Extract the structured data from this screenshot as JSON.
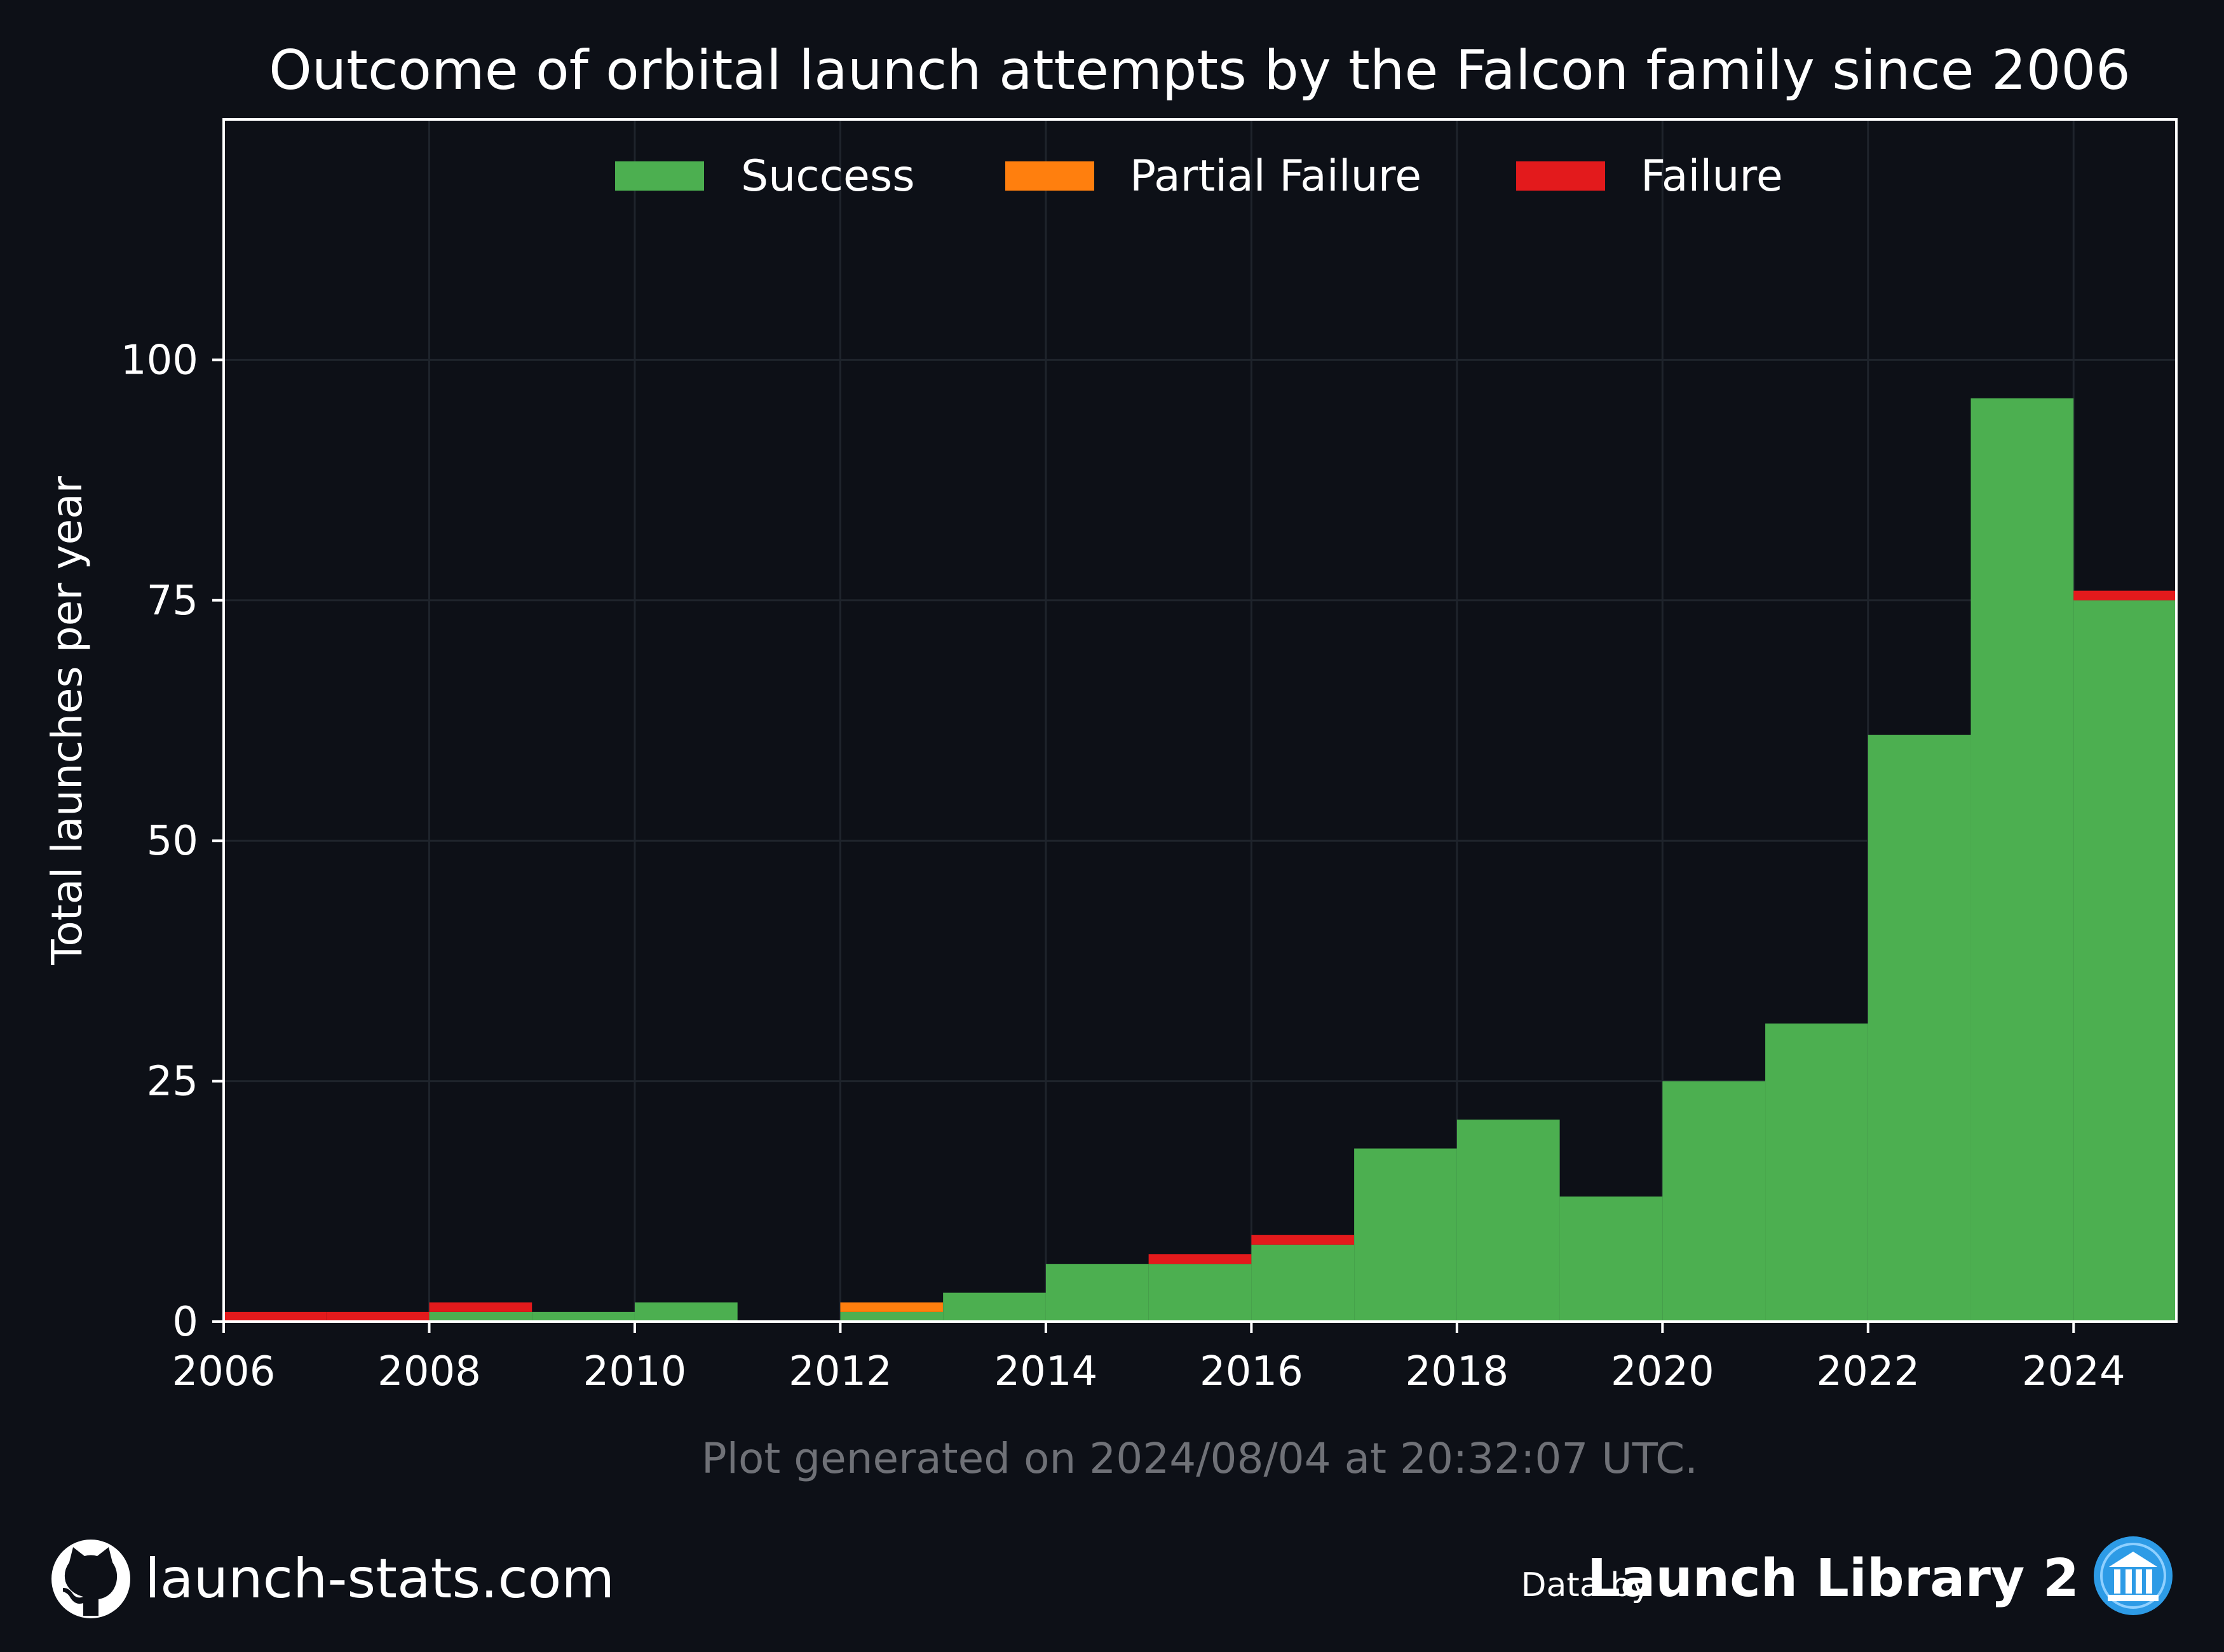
{
  "chart_data": {
    "type": "bar",
    "title": "Outcome of orbital launch attempts by the Falcon family since 2006",
    "ylabel": "Total launches per year",
    "xlabel": "",
    "xlim": [
      2006,
      2025
    ],
    "ylim": [
      0,
      125
    ],
    "xticks": [
      2006,
      2008,
      2010,
      2012,
      2014,
      2016,
      2018,
      2020,
      2022,
      2024
    ],
    "yticks": [
      0,
      25,
      50,
      75,
      100
    ],
    "stacked": true,
    "grid": true,
    "legend_position": "top-center",
    "categories": [
      2006,
      2007,
      2008,
      2009,
      2010,
      2011,
      2012,
      2013,
      2014,
      2015,
      2016,
      2017,
      2018,
      2019,
      2020,
      2021,
      2022,
      2023,
      2024
    ],
    "series": [
      {
        "name": "Success",
        "color": "#4caf50",
        "values": [
          0,
          0,
          1,
          1,
          2,
          0,
          1,
          3,
          6,
          6,
          8,
          18,
          21,
          13,
          25,
          31,
          61,
          96,
          75
        ]
      },
      {
        "name": "Partial Failure",
        "color": "#ff7f0e",
        "values": [
          0,
          0,
          0,
          0,
          0,
          0,
          1,
          0,
          0,
          0,
          0,
          0,
          0,
          0,
          0,
          0,
          0,
          0,
          0
        ]
      },
      {
        "name": "Failure",
        "color": "#e31a1c",
        "values": [
          1,
          1,
          1,
          0,
          0,
          0,
          0,
          0,
          0,
          1,
          1,
          0,
          0,
          0,
          0,
          0,
          0,
          0,
          1
        ]
      }
    ]
  },
  "footer": {
    "generated_note": "Plot generated on 2024/08/04 at 20:32:07 UTC.",
    "site": "launch-stats.com",
    "data_by": "Data by",
    "source": "Launch Library 2"
  },
  "icons": {
    "site_icon": "github-icon",
    "source_icon": "launch-library-icon"
  },
  "colors": {
    "background": "#0d1017",
    "axis": "#ffffff",
    "grid": "#1f242c",
    "footnote": "#6f7177",
    "source_icon": "#2d9be6"
  }
}
